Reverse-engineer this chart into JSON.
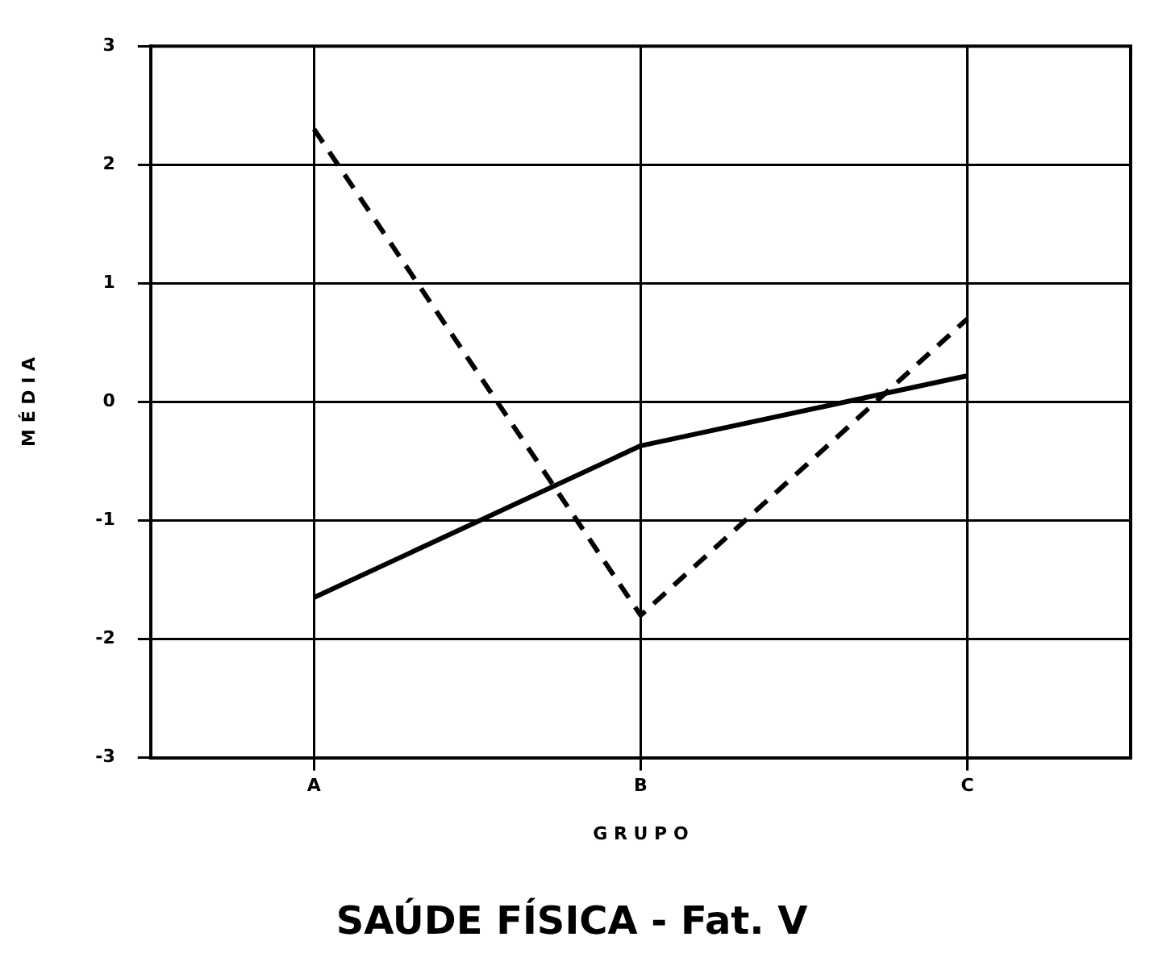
{
  "chart_data": {
    "type": "line",
    "title": "SAÚDE FÍSICA - Fat. V",
    "xlabel": "G R U P O",
    "ylabel": "M É D I A",
    "categories": [
      "A",
      "B",
      "C"
    ],
    "series": [
      {
        "color": "#000000",
        "values": [
          -1.65,
          -0.37,
          0.22
        ],
        "line_style": "solid"
      },
      {
        "color": "#000000",
        "values": [
          2.3,
          -1.8,
          0.7
        ],
        "line_style": "dashed"
      }
    ],
    "ylim": [
      -3,
      3
    ],
    "yticks": [
      -3,
      -2,
      -1,
      0,
      1,
      2,
      3
    ],
    "grid": true,
    "legend": false,
    "marker": "none"
  }
}
